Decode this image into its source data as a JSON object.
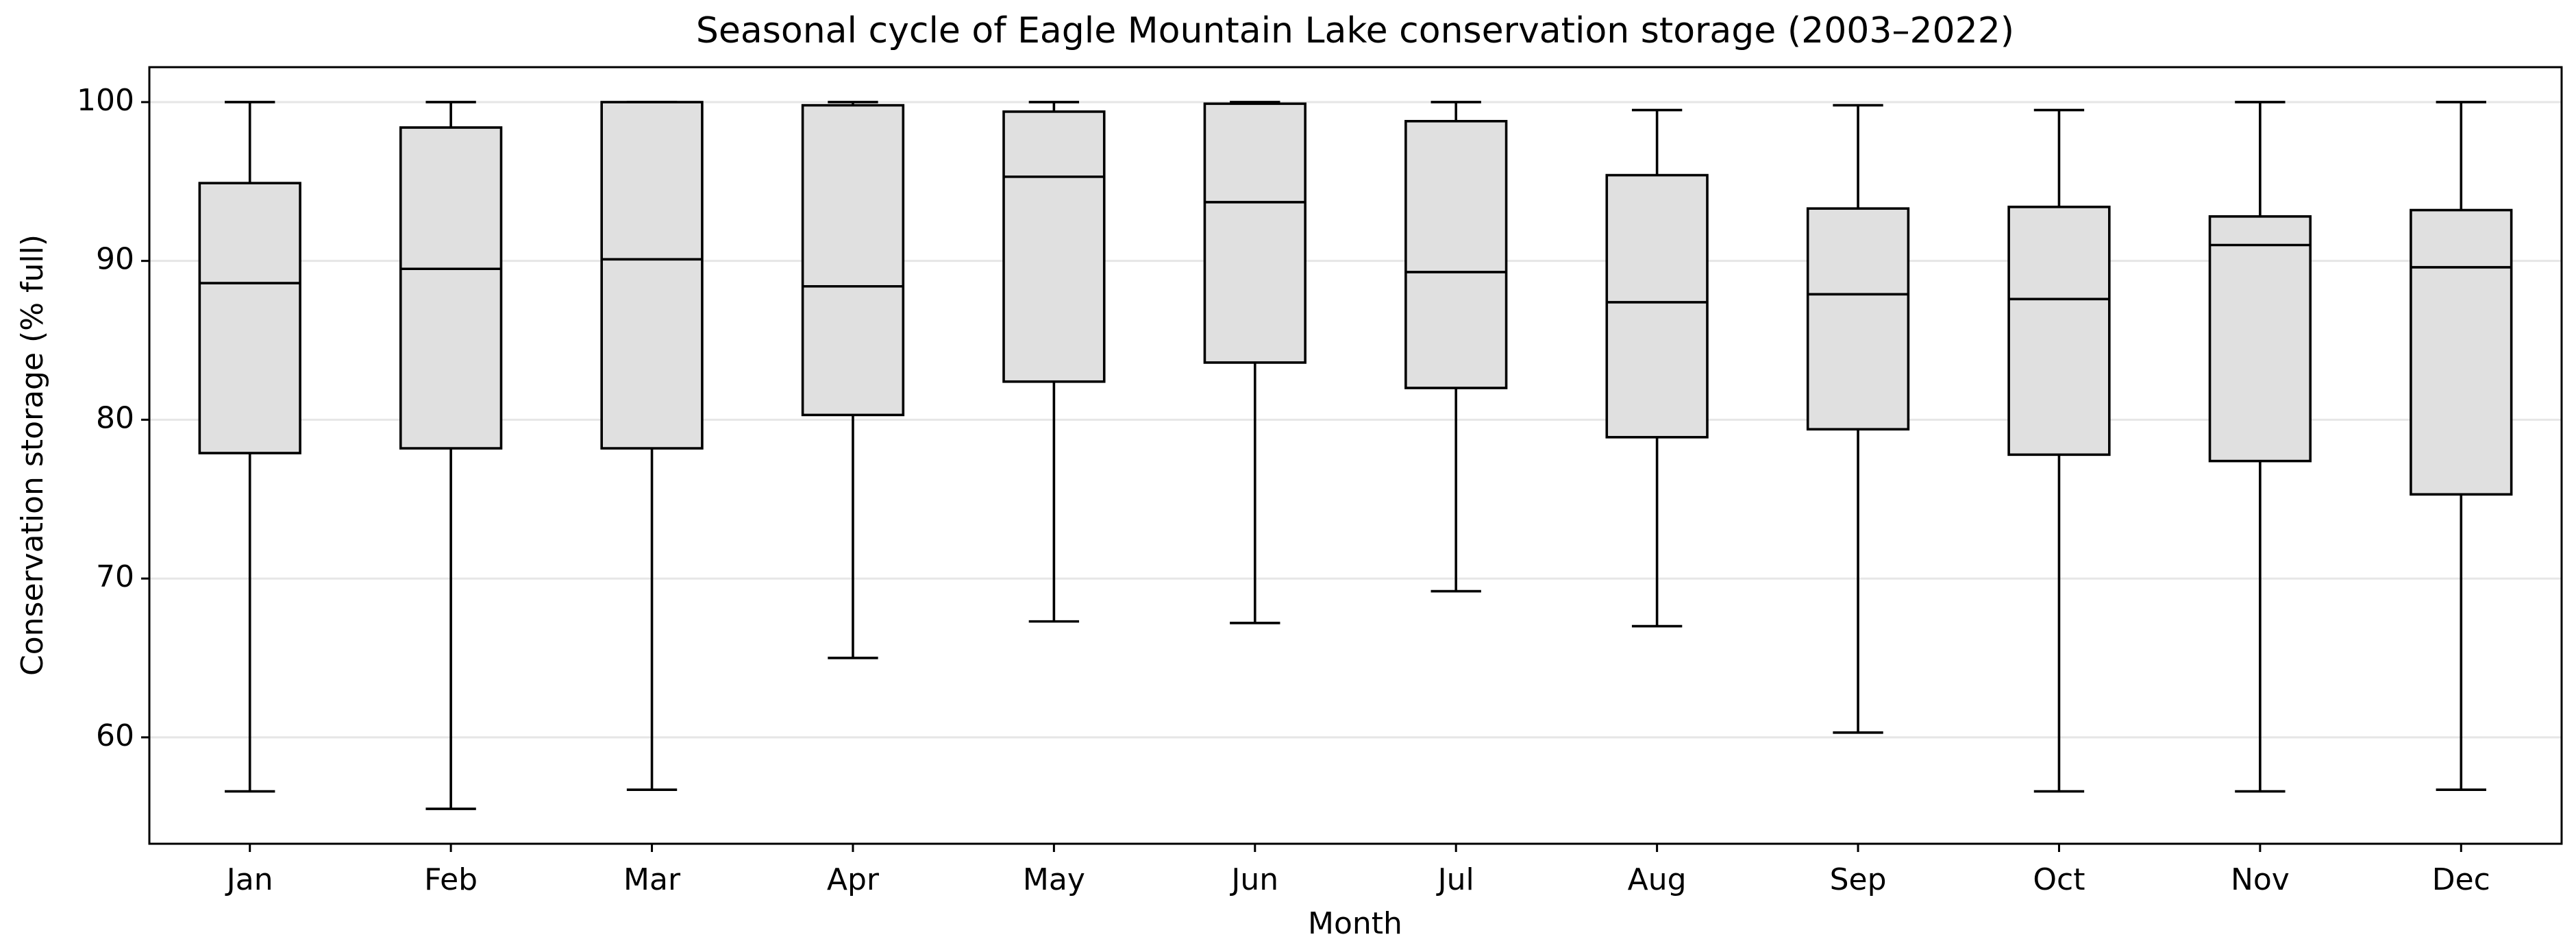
{
  "chart_data": {
    "type": "box",
    "title": "Seasonal cycle of Eagle Mountain Lake conservation storage (2003–2022)",
    "xlabel": "Month",
    "ylabel": "Conservation storage (% full)",
    "categories": [
      "Jan",
      "Feb",
      "Mar",
      "Apr",
      "May",
      "Jun",
      "Jul",
      "Aug",
      "Sep",
      "Oct",
      "Nov",
      "Dec"
    ],
    "whislo": [
      56.6,
      55.5,
      56.7,
      65.0,
      67.3,
      67.2,
      69.2,
      67.0,
      60.3,
      56.6,
      56.6,
      56.7
    ],
    "q1": [
      77.9,
      78.2,
      78.2,
      80.3,
      82.4,
      83.6,
      82.0,
      78.9,
      79.4,
      77.8,
      77.4,
      75.3
    ],
    "median": [
      88.6,
      89.5,
      90.1,
      88.4,
      95.3,
      93.7,
      89.3,
      87.4,
      87.9,
      87.6,
      91.0,
      89.6
    ],
    "q3": [
      94.9,
      98.4,
      100.0,
      99.8,
      99.4,
      99.9,
      98.8,
      95.4,
      93.3,
      93.4,
      92.8,
      93.2
    ],
    "whishi": [
      100.0,
      100.0,
      100.0,
      100.0,
      100.0,
      100.0,
      100.0,
      99.5,
      99.8,
      99.5,
      100.0,
      100.0
    ],
    "color": "#e0e0e0",
    "ylim": [
      53.3,
      102.2
    ],
    "yticks": [
      60,
      70,
      80,
      90,
      100
    ],
    "grid": true
  }
}
